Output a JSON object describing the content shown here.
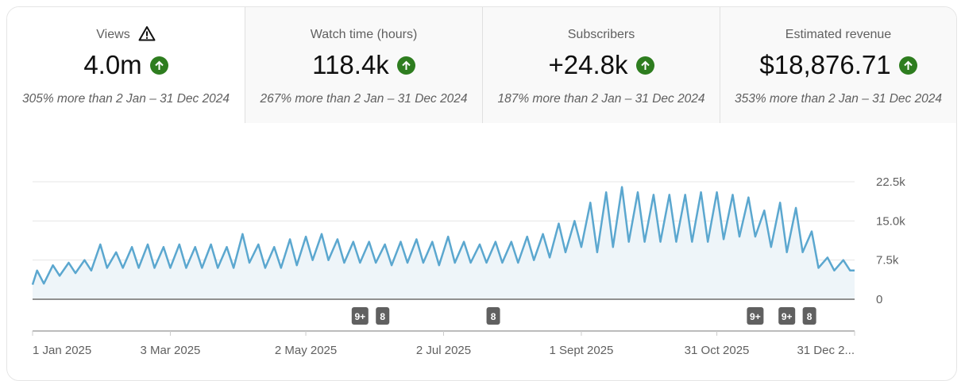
{
  "tabs": [
    {
      "title": "Views",
      "value": "4.0m",
      "sub": "305% more than 2 Jan – 31 Dec 2024",
      "warning": true
    },
    {
      "title": "Watch time (hours)",
      "value": "118.4k",
      "sub": "267% more than 2 Jan – 31 Dec 2024"
    },
    {
      "title": "Subscribers",
      "value": "+24.8k",
      "sub": "187% more than 2 Jan – 31 Dec 2024"
    },
    {
      "title": "Estimated revenue",
      "value": "$18,876.71",
      "sub": "353% more than 2 Jan – 31 Dec 2024"
    }
  ],
  "colors": {
    "line": "#5ba7cf",
    "fill": "#eef5f9",
    "up": "#2e7d1f",
    "marker": "#606060"
  },
  "chart_data": {
    "type": "line",
    "series_name": "Views",
    "x_unit": "day of 2025 (0 = 1 Jan)",
    "weekly_peak_trough_k": [
      [
        5.5,
        3
      ],
      [
        6.5,
        4.5
      ],
      [
        7,
        5
      ],
      [
        7.5,
        5.5
      ],
      [
        10.5,
        6
      ],
      [
        9,
        6
      ],
      [
        10,
        6
      ],
      [
        10.5,
        6
      ],
      [
        10,
        6
      ],
      [
        10.5,
        6
      ],
      [
        10,
        6
      ],
      [
        10.5,
        6
      ],
      [
        10,
        6
      ],
      [
        12.5,
        7
      ],
      [
        10.5,
        6
      ],
      [
        10,
        6
      ],
      [
        11.5,
        6.5
      ],
      [
        12,
        7.5
      ],
      [
        12.5,
        7.5
      ],
      [
        11.5,
        7
      ],
      [
        11,
        7
      ],
      [
        11,
        7
      ],
      [
        10.5,
        6.5
      ],
      [
        11,
        7
      ],
      [
        11.5,
        7
      ],
      [
        11,
        6.5
      ],
      [
        12,
        7
      ],
      [
        11,
        7
      ],
      [
        10.5,
        7
      ],
      [
        11,
        7
      ],
      [
        11,
        7
      ],
      [
        12,
        7.5
      ],
      [
        12.5,
        8
      ],
      [
        14.5,
        9
      ],
      [
        15,
        10
      ],
      [
        18.5,
        9
      ],
      [
        20.5,
        10
      ],
      [
        21.5,
        11
      ],
      [
        20.5,
        11
      ],
      [
        20,
        11
      ],
      [
        20,
        11
      ],
      [
        20,
        11
      ],
      [
        20.5,
        11
      ],
      [
        20.5,
        11.5
      ],
      [
        20,
        12
      ],
      [
        19.5,
        12
      ],
      [
        17,
        10
      ],
      [
        18.5,
        9
      ],
      [
        17.5,
        9
      ],
      [
        13,
        6
      ],
      [
        8,
        5.5
      ],
      [
        7.5,
        5.5
      ],
      [
        7.5,
        6
      ]
    ],
    "ylim": [
      0,
      22.5
    ],
    "y_ticks": [
      "0",
      "7.5k",
      "15.0k",
      "22.5k"
    ],
    "x_ticks": [
      {
        "day": 0,
        "label": "1 Jan 2025"
      },
      {
        "day": 61,
        "label": "3 Mar 2025"
      },
      {
        "day": 121,
        "label": "2 May 2025"
      },
      {
        "day": 182,
        "label": "2 Jul 2025"
      },
      {
        "day": 243,
        "label": "1 Sept 2025"
      },
      {
        "day": 303,
        "label": "31 Oct 2025"
      },
      {
        "day": 364,
        "label": "31 Dec 2..."
      }
    ],
    "markers": [
      {
        "day": 145,
        "label": "9+"
      },
      {
        "day": 155,
        "label": "8"
      },
      {
        "day": 204,
        "label": "8"
      },
      {
        "day": 320,
        "label": "9+"
      },
      {
        "day": 334,
        "label": "9+"
      },
      {
        "day": 344,
        "label": "8"
      }
    ]
  }
}
